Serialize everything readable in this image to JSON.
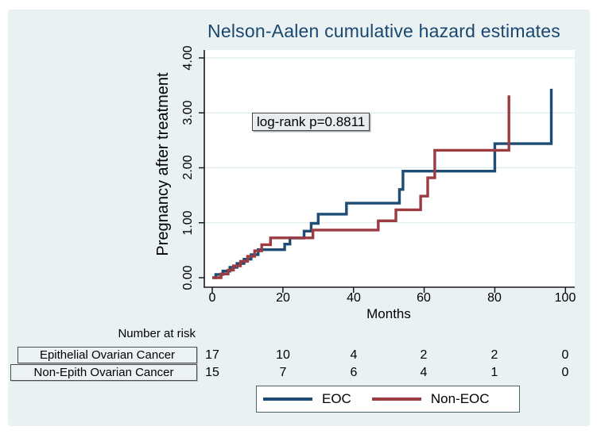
{
  "chart_data": {
    "type": "line",
    "subtype": "step-function (cumulative hazard)",
    "title": "Nelson-Aalen cumulative hazard estimates",
    "xlabel": "Months",
    "ylabel": "Pregnancy after treatment",
    "xlim": [
      0,
      100
    ],
    "ylim": [
      0,
      4
    ],
    "x_ticks": [
      0,
      20,
      40,
      60,
      80,
      100
    ],
    "y_ticks": [
      0,
      1,
      2,
      3,
      4
    ],
    "x_tick_labels": [
      "0",
      "20",
      "40",
      "60",
      "80",
      "100"
    ],
    "y_tick_labels": [
      "0.00",
      "1.00",
      "2.00",
      "3.00",
      "4.00"
    ],
    "grid": "horizontal gridlines at labeled y ticks",
    "legend_position": "bottom-center",
    "annotations": [
      {
        "text": "log-rank p=0.8811",
        "x_months": 12,
        "y_hazard": 2.9
      }
    ],
    "series": [
      {
        "name": "EOC",
        "color": "#1E4C74",
        "n_at_start": 17,
        "points_month_cumhazard": [
          [
            0,
            0
          ],
          [
            1,
            0.059
          ],
          [
            3,
            0.121
          ],
          [
            5,
            0.188
          ],
          [
            7,
            0.259
          ],
          [
            9,
            0.336
          ],
          [
            11,
            0.42
          ],
          [
            13,
            0.51
          ],
          [
            20.5,
            0.611
          ],
          [
            22,
            0.722
          ],
          [
            26,
            0.847
          ],
          [
            28,
            0.989
          ],
          [
            30,
            1.156
          ],
          [
            38,
            1.356
          ],
          [
            53,
            1.606
          ],
          [
            54,
            1.939
          ],
          [
            80,
            2.439
          ],
          [
            96,
            3.439
          ]
        ]
      },
      {
        "name": "Non-EOC",
        "color": "#9C3C42",
        "n_at_start": 15,
        "points_month_cumhazard": [
          [
            0,
            0
          ],
          [
            2.5,
            0.067
          ],
          [
            4.5,
            0.138
          ],
          [
            6,
            0.215
          ],
          [
            8,
            0.298
          ],
          [
            10,
            0.389
          ],
          [
            12,
            0.489
          ],
          [
            14,
            0.6
          ],
          [
            16.5,
            0.725
          ],
          [
            28.5,
            0.868
          ],
          [
            47,
            1.035
          ],
          [
            52,
            1.235
          ],
          [
            59,
            1.485
          ],
          [
            61,
            1.818
          ],
          [
            63,
            2.318
          ],
          [
            84,
            3.318
          ]
        ]
      }
    ]
  },
  "risk_table": {
    "header": "Number at risk",
    "time_points": [
      0,
      20,
      40,
      60,
      80,
      100
    ],
    "rows": [
      {
        "label": "Epithelial Ovarian Cancer",
        "values": [
          "17",
          "10",
          "4",
          "2",
          "2",
          "0"
        ]
      },
      {
        "label": "Non-Epith Ovarian Cancer",
        "values": [
          "15",
          "7",
          "6",
          "4",
          "1",
          "0"
        ]
      }
    ]
  },
  "legend": {
    "items": [
      {
        "label": "EOC",
        "color": "#1E4C74"
      },
      {
        "label": "Non-EOC",
        "color": "#9C3C42"
      }
    ]
  },
  "colors": {
    "canvas_background": "#EAF1F3",
    "plot_background": "#FFFFFF",
    "title_text": "#1A476F",
    "gridline": "#DFEBED",
    "axis": "#1a1a1a"
  }
}
